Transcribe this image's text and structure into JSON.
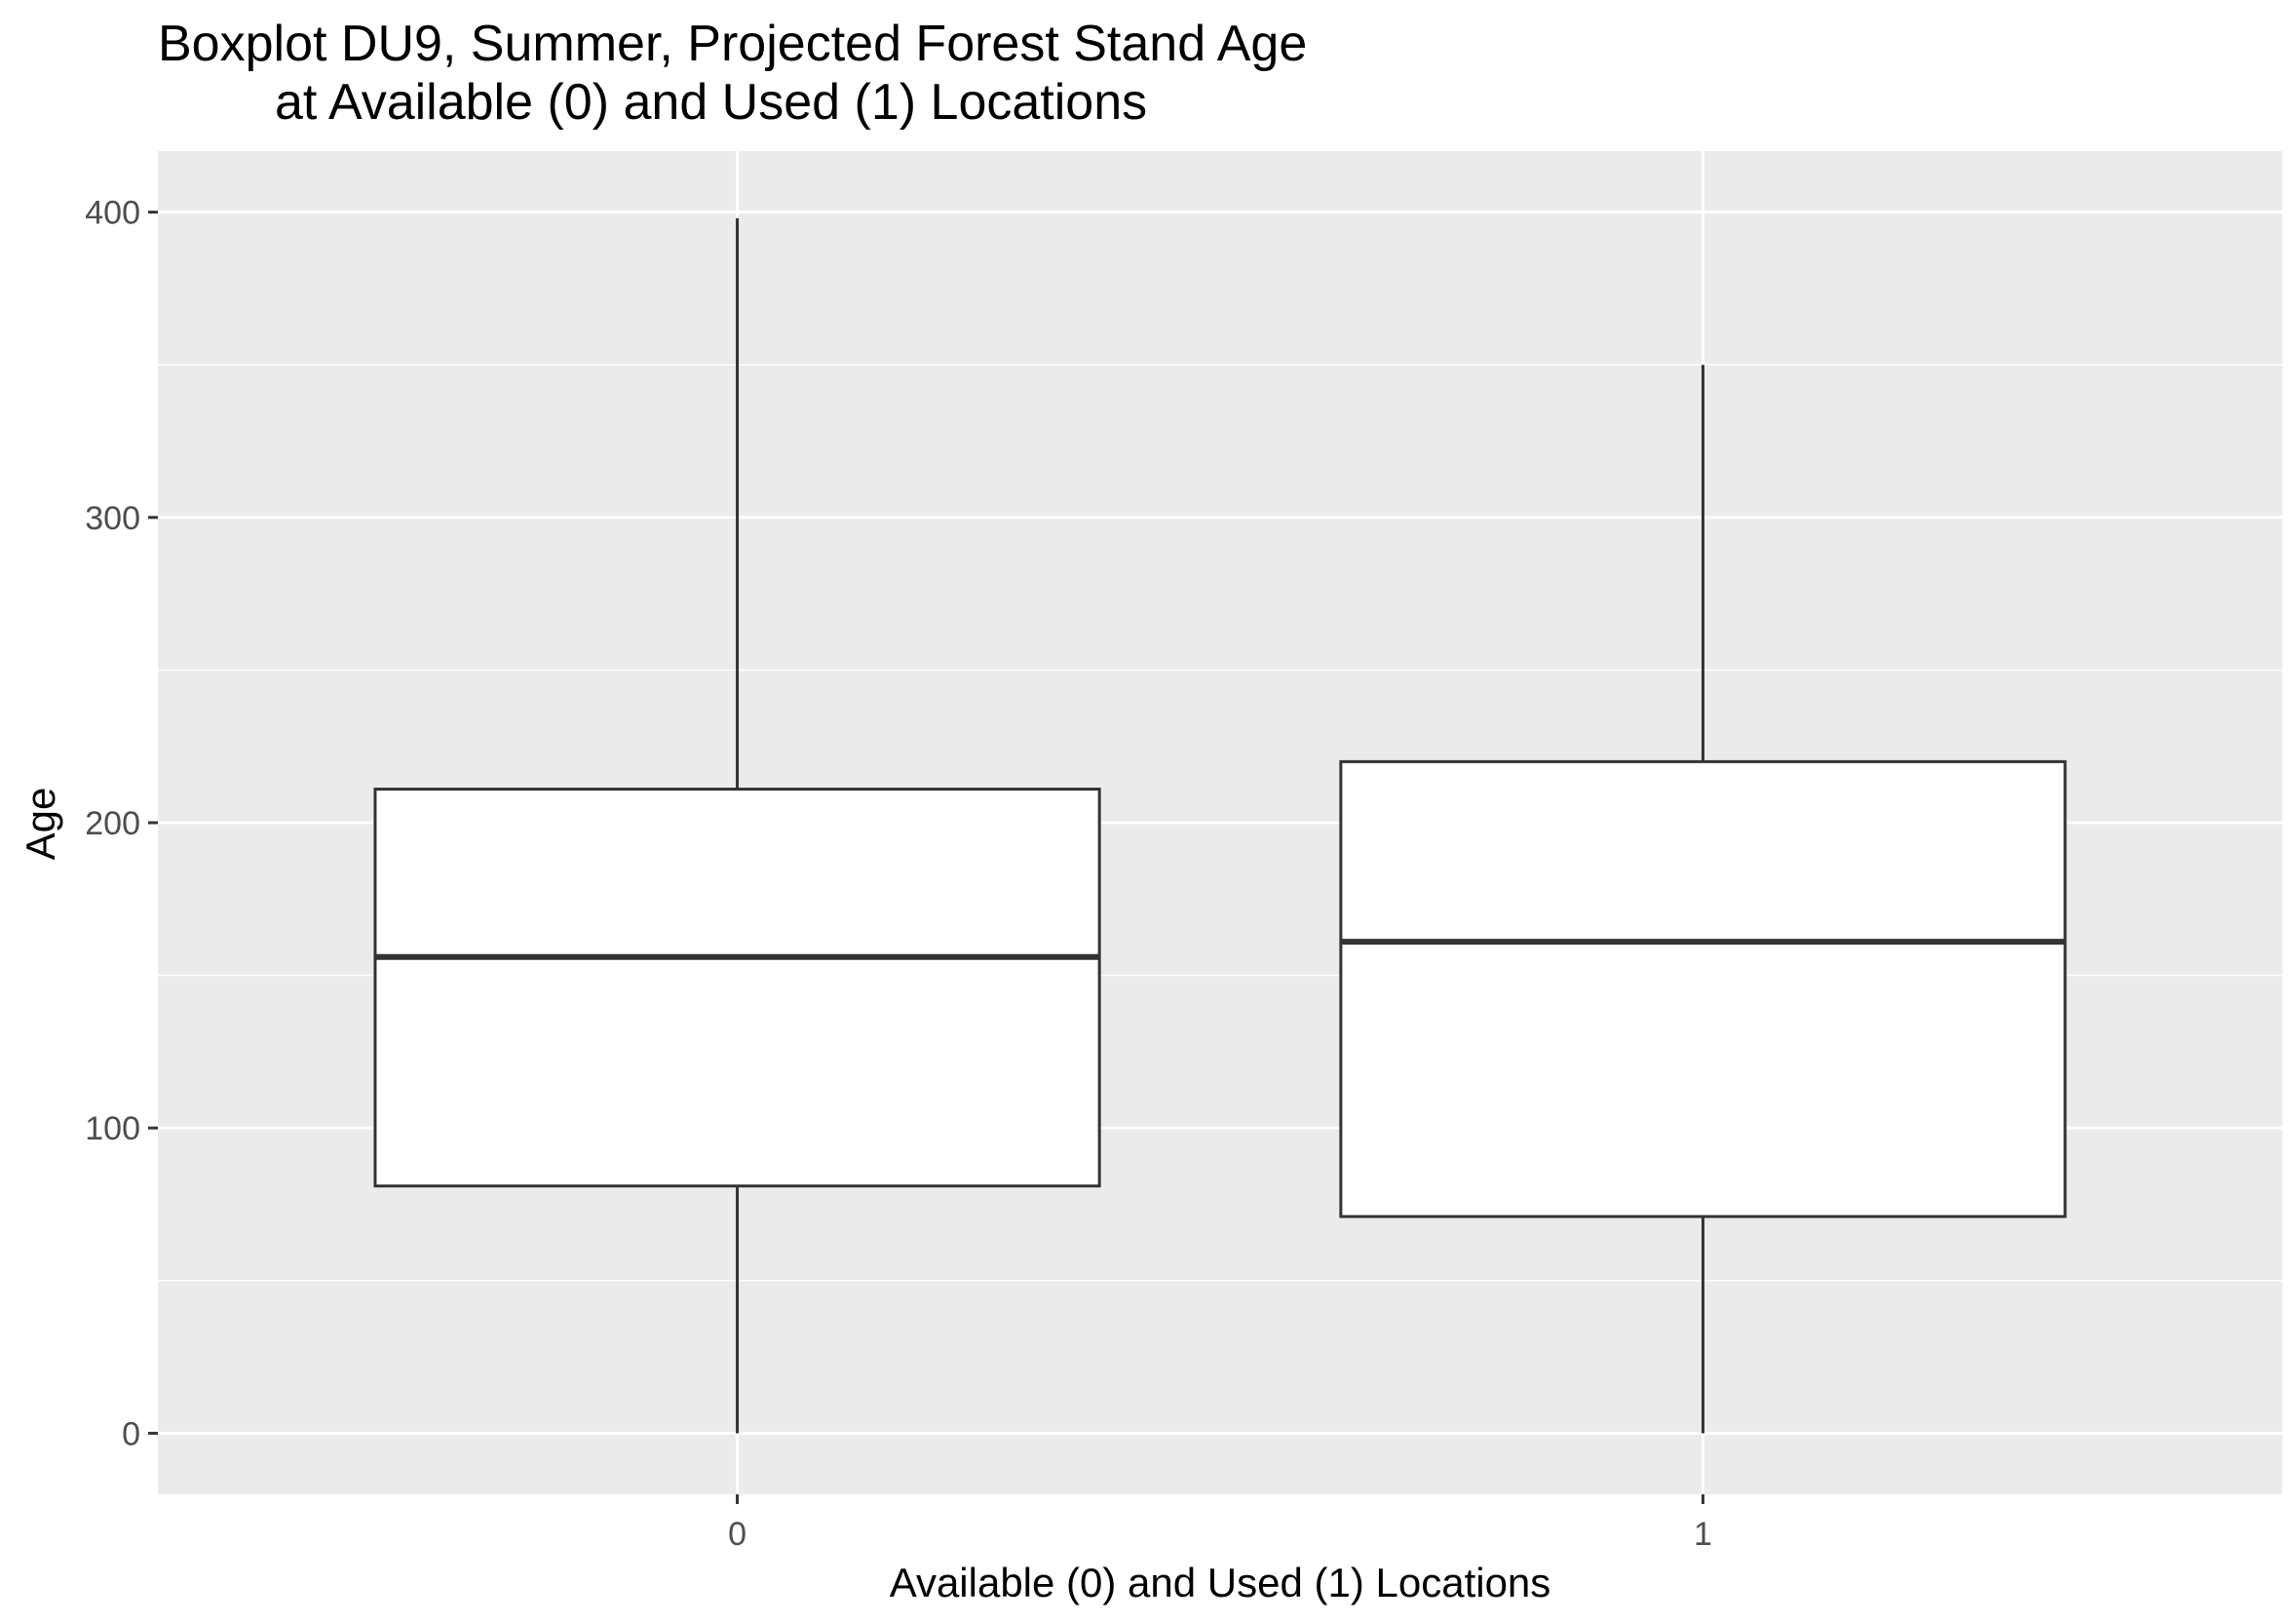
{
  "chart_data": {
    "type": "boxplot",
    "title_lines": [
      "Boxplot DU9, Summer, Projected Forest Stand Age",
      "at Available (0) and Used (1) Locations"
    ],
    "xlabel": "Available (0) and Used (1) Locations",
    "ylabel": "Age",
    "categories": [
      "0",
      "1"
    ],
    "y_ticks": [
      0,
      100,
      200,
      300,
      400
    ],
    "y_tick_labels": [
      "0",
      "100",
      "200",
      "300",
      "400"
    ],
    "ylim": [
      -20,
      420
    ],
    "grid": true,
    "boxes": [
      {
        "category": "0",
        "min": 0,
        "q1": 81,
        "median": 156,
        "q3": 211,
        "max": 398
      },
      {
        "category": "1",
        "min": 0,
        "q1": 71,
        "median": 161,
        "q3": 220,
        "max": 350
      }
    ],
    "colors": {
      "panel_background": "#ebebeb",
      "grid": "#ffffff",
      "box_fill": "#ffffff",
      "box_stroke": "#333333",
      "tick_mark": "#333333",
      "tick_label": "#4d4d4d"
    }
  }
}
